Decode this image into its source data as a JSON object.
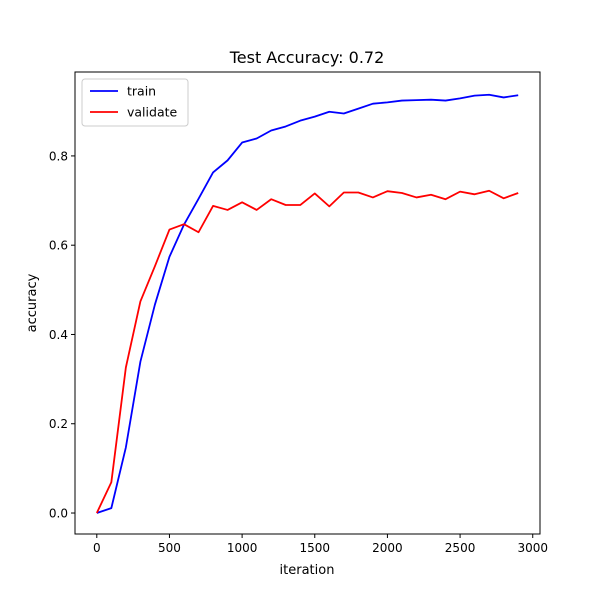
{
  "chart_data": {
    "type": "line",
    "title": "Test Accuracy: 0.72",
    "xlabel": "iteration",
    "ylabel": "accuracy",
    "xlim": [
      -150,
      3050
    ],
    "ylim": [
      -0.047,
      0.988
    ],
    "xticks": [
      0,
      500,
      1000,
      1500,
      2000,
      2500,
      3000
    ],
    "xtick_labels": [
      "0",
      "500",
      "1000",
      "1500",
      "2000",
      "2500",
      "3000"
    ],
    "yticks": [
      0.0,
      0.2,
      0.4,
      0.6,
      0.8
    ],
    "ytick_labels": [
      "0.0",
      "0.2",
      "0.4",
      "0.6",
      "0.8"
    ],
    "grid": false,
    "legend_position": "upper-left",
    "x": [
      0,
      100,
      200,
      300,
      400,
      500,
      600,
      700,
      800,
      900,
      1000,
      1100,
      1200,
      1300,
      1400,
      1500,
      1600,
      1700,
      1800,
      1900,
      2000,
      2100,
      2200,
      2300,
      2400,
      2500,
      2600,
      2700,
      2800,
      2900
    ],
    "series": [
      {
        "name": "train",
        "color": "#0000ff",
        "values": [
          0.0,
          0.011,
          0.147,
          0.339,
          0.467,
          0.574,
          0.646,
          0.704,
          0.763,
          0.79,
          0.83,
          0.839,
          0.857,
          0.866,
          0.879,
          0.888,
          0.899,
          0.895,
          0.906,
          0.917,
          0.92,
          0.924,
          0.925,
          0.926,
          0.924,
          0.929,
          0.935,
          0.937,
          0.931,
          0.936
        ]
      },
      {
        "name": "validate",
        "color": "#ff0000",
        "values": [
          0.0,
          0.069,
          0.326,
          0.474,
          0.553,
          0.635,
          0.647,
          0.629,
          0.688,
          0.679,
          0.696,
          0.679,
          0.703,
          0.69,
          0.69,
          0.716,
          0.687,
          0.718,
          0.718,
          0.707,
          0.721,
          0.717,
          0.707,
          0.713,
          0.703,
          0.72,
          0.714,
          0.722,
          0.705,
          0.717
        ]
      }
    ]
  }
}
